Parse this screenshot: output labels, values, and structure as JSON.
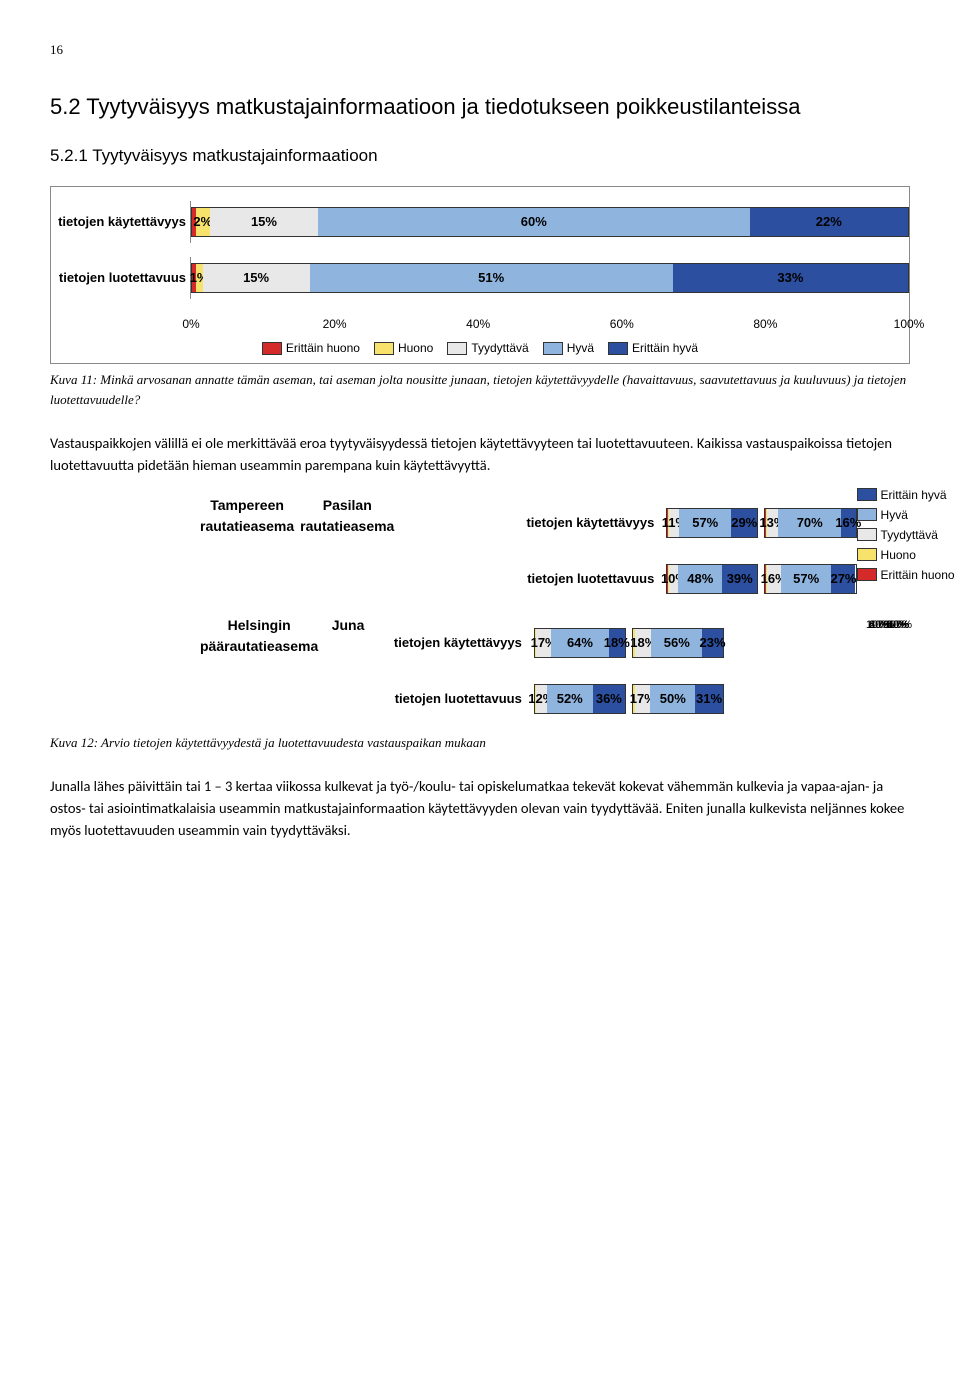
{
  "page_number": "16",
  "heading_5_2": "5.2 Tyytyväisyys matkustajainformaatioon ja tiedotukseen poikkeustilanteissa",
  "heading_5_2_1": "5.2.1 Tyytyväisyys matkustajainformaatioon",
  "colors": {
    "erittain_huono": "#d42a2a",
    "huono": "#f7e36b",
    "tyydyttava": "#e8e8e8",
    "hyva": "#8fb5df",
    "erittain_hyva": "#2c4fa0",
    "border": "#333333"
  },
  "legend": {
    "erittain_huono": "Erittäin huono",
    "huono": "Huono",
    "tyydyttava": "Tyydyttävä",
    "hyva": "Hyvä",
    "erittain_hyva": "Erittäin hyvä"
  },
  "chart1": {
    "rows": [
      {
        "label": "tietojen käytettävyys",
        "segs": [
          0.5,
          2,
          15,
          60,
          22
        ],
        "show": [
          "",
          "2%",
          "15%",
          "60%",
          "22%"
        ]
      },
      {
        "label": "tietojen luotettavuus",
        "segs": [
          0.5,
          1,
          15,
          51,
          33
        ],
        "show": [
          "",
          "1%",
          "15%",
          "51%",
          "33%"
        ]
      }
    ],
    "ticks": [
      "0%",
      "20%",
      "40%",
      "60%",
      "80%",
      "100%"
    ]
  },
  "caption1": "Kuva 11: Minkä arvosanan annatte tämän aseman, tai aseman jolta nousitte junaan, tietojen käytettävyydelle (havaittavuus, saavutettavuus ja kuuluvuus) ja tietojen luotettavuudelle?",
  "para1": "Vastauspaikkojen välillä ei ole merkittävää eroa tyytyväisyydessä tietojen käytettävyyteen tai luotettavuuteen. Kaikissa vastauspaikoissa tietojen luotettavuutta pidetään hieman useammin parempana kuin käytettävyyttä.",
  "panels": {
    "row_labels": [
      "tietojen käytettävyys",
      "tietojen luotettavuus"
    ],
    "ticks": [
      "0%",
      "20%",
      "40%",
      "60%",
      "80%",
      "100%"
    ],
    "top": [
      {
        "title": "Tampereen rautatieasema",
        "rows": [
          {
            "segs": [
              0.3,
              2,
              11,
              57,
              29
            ],
            "show": [
              "",
              "",
              "11%",
              "57%",
              "29%"
            ]
          },
          {
            "segs": [
              0.3,
              2,
              10,
              48,
              39
            ],
            "show": [
              "",
              "",
              "10%",
              "48%",
              "39%"
            ]
          }
        ]
      },
      {
        "title": "Pasilan rautatieasema",
        "rows": [
          {
            "segs": [
              0.3,
              1,
              13,
              70,
              16
            ],
            "show": [
              "",
              "",
              "13%",
              "70%",
              "16%"
            ]
          },
          {
            "segs": [
              0.3,
              1,
              16,
              57,
              27
            ],
            "show": [
              "",
              "",
              "16%",
              "57%",
              "27%"
            ]
          }
        ]
      }
    ],
    "bottom": [
      {
        "title": "Helsingin päärautatieasema",
        "rows": [
          {
            "segs": [
              0.3,
              1,
              17,
              64,
              18
            ],
            "show": [
              "",
              "",
              "17%",
              "64%",
              "18%"
            ]
          },
          {
            "segs": [
              0.3,
              1,
              12,
              52,
              36
            ],
            "show": [
              "",
              "",
              "12%",
              "52%",
              "36%"
            ]
          }
        ]
      },
      {
        "title": "Juna",
        "rows": [
          {
            "segs": [
              0.5,
              2,
              18,
              56,
              23
            ],
            "show": [
              "",
              "",
              "18%",
              "56%",
              "23%"
            ]
          },
          {
            "segs": [
              0.5,
              2,
              17,
              50,
              31
            ],
            "show": [
              "",
              "",
              "17%",
              "50%",
              "31%"
            ]
          }
        ]
      }
    ]
  },
  "caption2": "Kuva 12: Arvio tietojen käytettävyydestä ja luotettavuudesta vastauspaikan mukaan",
  "para2": "Junalla lähes päivittäin tai 1 – 3 kertaa viikossa kulkevat ja työ-/koulu- tai opiskelumatkaa tekevät kokevat vähemmän kulkevia ja vapaa-ajan- ja ostos- tai asiointimatkalaisia useammin matkustajainformaation käytettävyyden olevan vain tyydyttävää. Eniten junalla kulkevista neljännes kokee myös luotettavuuden useammin vain tyydyttäväksi."
}
